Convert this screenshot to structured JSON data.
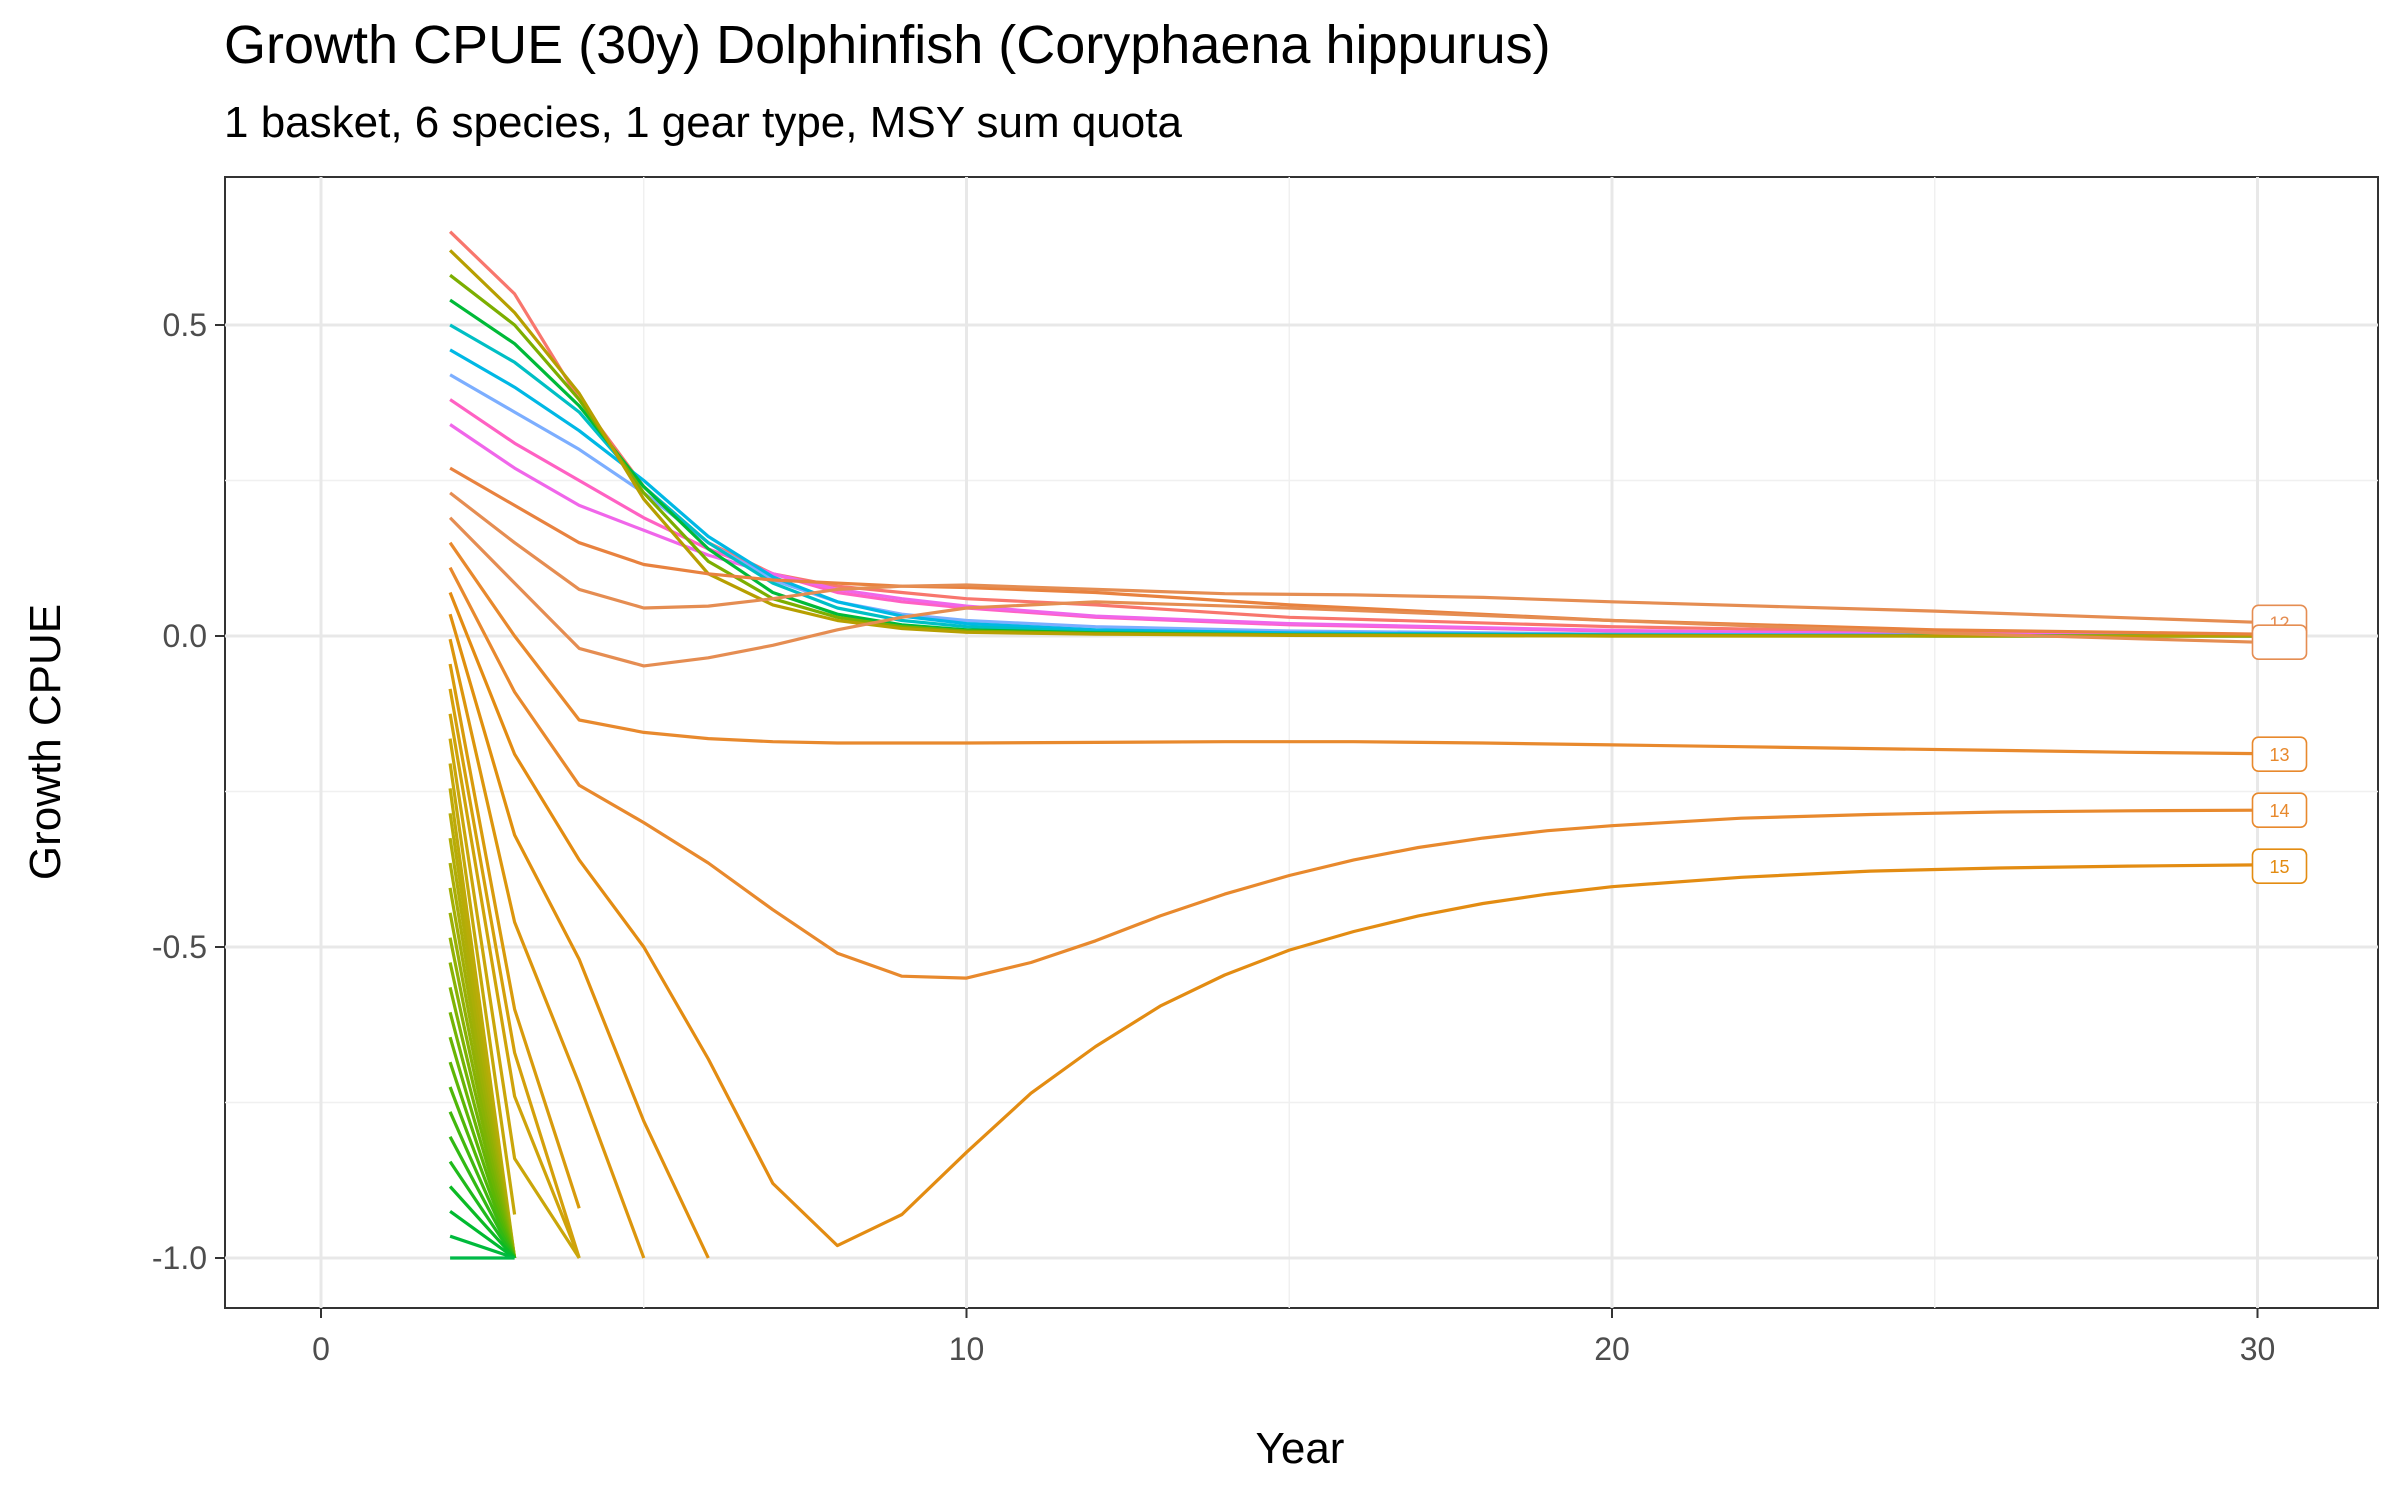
{
  "chart_data": {
    "type": "line",
    "title": "Growth CPUE (30y) Dolphinfish (Coryphaena hippurus)",
    "subtitle": "1 basket, 6 species, 1 gear type, MSY sum quota",
    "xlabel": "Year",
    "ylabel": "Growth CPUE",
    "xlim": [
      -1.5,
      31.5
    ],
    "ylim": [
      -1.08,
      0.73
    ],
    "x_ticks": [
      0,
      10,
      20,
      30
    ],
    "x_tick_labels": [
      "0",
      "10",
      "20",
      "30"
    ],
    "y_ticks": [
      0.5,
      0.0,
      -0.5,
      -1.0
    ],
    "y_tick_labels": [
      "0.5",
      "0.0",
      "-0.5",
      "-1.0"
    ],
    "grid": true,
    "legend": "none",
    "end_labels": [
      {
        "text": "12",
        "y": 0.022,
        "color": "#E58D52"
      },
      {
        "text": "",
        "y": -0.01,
        "color": "#E58D52"
      },
      {
        "text": "13",
        "y": -0.19,
        "color": "#E8892D"
      },
      {
        "text": "14",
        "y": -0.28,
        "color": "#E8892D"
      },
      {
        "text": "15",
        "y": -0.37,
        "color": "#E38C12"
      }
    ],
    "series": [
      {
        "color": "#F8766D",
        "x": [
          2,
          3,
          4,
          5,
          6,
          7,
          8,
          9,
          10,
          12,
          15,
          20,
          25,
          30
        ],
        "y": [
          0.65,
          0.55,
          0.38,
          0.24,
          0.15,
          0.1,
          0.08,
          0.07,
          0.06,
          0.05,
          0.03,
          0.015,
          0.006,
          0.002
        ]
      },
      {
        "color": "#FF61C3",
        "x": [
          2,
          3,
          4,
          5,
          6,
          7,
          8,
          9,
          10,
          12,
          15,
          20,
          25,
          30
        ],
        "y": [
          0.38,
          0.31,
          0.25,
          0.19,
          0.14,
          0.1,
          0.07,
          0.055,
          0.045,
          0.03,
          0.018,
          0.008,
          0.003,
          0.001
        ]
      },
      {
        "color": "#F066EA",
        "x": [
          2,
          3,
          4,
          5,
          6,
          7,
          8,
          9,
          10,
          12,
          15,
          20,
          25,
          30
        ],
        "y": [
          0.34,
          0.27,
          0.21,
          0.17,
          0.13,
          0.1,
          0.075,
          0.06,
          0.048,
          0.032,
          0.02,
          0.009,
          0.003,
          0.001
        ]
      },
      {
        "color": "#7CAEFF",
        "x": [
          2,
          3,
          4,
          5,
          6,
          7,
          8,
          9,
          10,
          12,
          15,
          20,
          25,
          30
        ],
        "y": [
          0.42,
          0.36,
          0.3,
          0.23,
          0.15,
          0.09,
          0.055,
          0.035,
          0.025,
          0.015,
          0.008,
          0.003,
          0.001,
          0.0
        ]
      },
      {
        "color": "#00B8E5",
        "x": [
          2,
          3,
          4,
          5,
          6,
          7,
          8,
          9,
          10,
          12,
          15,
          20,
          25,
          30
        ],
        "y": [
          0.46,
          0.4,
          0.33,
          0.25,
          0.16,
          0.095,
          0.055,
          0.032,
          0.02,
          0.01,
          0.005,
          0.002,
          0.001,
          0.0
        ]
      },
      {
        "color": "#00BFC4",
        "x": [
          2,
          3,
          4,
          5,
          6,
          7,
          8,
          9,
          10,
          12,
          15,
          20,
          25,
          30
        ],
        "y": [
          0.5,
          0.44,
          0.36,
          0.24,
          0.15,
          0.085,
          0.045,
          0.025,
          0.015,
          0.007,
          0.003,
          0.001,
          0.0,
          0.0
        ]
      },
      {
        "color": "#00BA38",
        "x": [
          2,
          3,
          4,
          5,
          6,
          7,
          8,
          9,
          10,
          12,
          15,
          20,
          25,
          30
        ],
        "y": [
          0.54,
          0.47,
          0.37,
          0.24,
          0.14,
          0.07,
          0.035,
          0.018,
          0.01,
          0.005,
          0.002,
          0.001,
          0.0,
          0.0
        ]
      },
      {
        "color": "#7CAE00",
        "x": [
          2,
          3,
          4,
          5,
          6,
          7,
          8,
          9,
          10,
          12,
          15,
          20,
          25,
          30
        ],
        "y": [
          0.58,
          0.5,
          0.38,
          0.23,
          0.12,
          0.06,
          0.03,
          0.015,
          0.008,
          0.004,
          0.002,
          0.0,
          0.0,
          0.0
        ]
      },
      {
        "color": "#B79F00",
        "x": [
          2,
          3,
          4,
          5,
          6,
          7,
          8,
          9,
          10,
          12,
          15,
          20,
          25,
          30
        ],
        "y": [
          0.62,
          0.52,
          0.39,
          0.22,
          0.1,
          0.05,
          0.025,
          0.012,
          0.006,
          0.003,
          0.001,
          0.0,
          0.0,
          0.0
        ]
      },
      {
        "color": "#E8823F",
        "x": [
          2,
          3,
          4,
          5,
          6,
          7,
          8,
          9,
          10,
          12,
          15,
          20,
          25,
          30
        ],
        "y": [
          0.27,
          0.21,
          0.15,
          0.115,
          0.1,
          0.09,
          0.085,
          0.08,
          0.078,
          0.07,
          0.05,
          0.025,
          0.01,
          0.003
        ]
      },
      {
        "color": "#E58D52",
        "x": [
          2,
          3,
          4,
          5,
          6,
          7,
          8,
          9,
          10,
          12,
          14,
          16,
          18,
          20,
          25,
          30
        ],
        "y": [
          0.23,
          0.15,
          0.075,
          0.045,
          0.048,
          0.06,
          0.075,
          0.08,
          0.082,
          0.075,
          0.068,
          0.066,
          0.062,
          0.055,
          0.04,
          0.022
        ]
      },
      {
        "color": "#E58D52",
        "x": [
          2,
          3,
          4,
          5,
          6,
          7,
          8,
          9,
          10,
          12,
          15,
          20,
          25,
          30
        ],
        "y": [
          0.19,
          0.085,
          -0.02,
          -0.048,
          -0.035,
          -0.015,
          0.01,
          0.03,
          0.045,
          0.055,
          0.045,
          0.025,
          0.005,
          -0.01
        ]
      },
      {
        "color": "#E8892D",
        "x": [
          2,
          3,
          4,
          5,
          6,
          7,
          8,
          10,
          12,
          14,
          16,
          18,
          20,
          22,
          24,
          26,
          28,
          30
        ],
        "y": [
          0.15,
          0.0,
          -0.135,
          -0.155,
          -0.165,
          -0.17,
          -0.172,
          -0.172,
          -0.171,
          -0.17,
          -0.17,
          -0.172,
          -0.175,
          -0.178,
          -0.181,
          -0.184,
          -0.187,
          -0.189
        ]
      },
      {
        "color": "#E8892D",
        "x": [
          2,
          3,
          4,
          5,
          6,
          7,
          8,
          9,
          10,
          11,
          12,
          13,
          14,
          15,
          16,
          17,
          18,
          19,
          20,
          22,
          24,
          26,
          28,
          30
        ],
        "y": [
          0.11,
          -0.09,
          -0.24,
          -0.3,
          -0.365,
          -0.44,
          -0.51,
          -0.547,
          -0.55,
          -0.525,
          -0.49,
          -0.45,
          -0.415,
          -0.385,
          -0.36,
          -0.34,
          -0.325,
          -0.313,
          -0.305,
          -0.293,
          -0.287,
          -0.283,
          -0.281,
          -0.28
        ]
      },
      {
        "color": "#E38C12",
        "x": [
          2,
          3,
          4,
          5,
          6,
          7,
          8,
          9,
          10,
          11,
          12,
          13,
          14,
          15,
          16,
          17,
          18,
          19,
          20,
          22,
          24,
          26,
          28,
          30
        ],
        "y": [
          0.07,
          -0.19,
          -0.36,
          -0.5,
          -0.68,
          -0.88,
          -0.98,
          -0.93,
          -0.83,
          -0.735,
          -0.66,
          -0.595,
          -0.545,
          -0.505,
          -0.475,
          -0.45,
          -0.43,
          -0.415,
          -0.403,
          -0.388,
          -0.378,
          -0.373,
          -0.37,
          -0.368
        ]
      },
      {
        "color": "#E0900E",
        "x": [
          2,
          3,
          4,
          5,
          6
        ],
        "y": [
          0.035,
          -0.32,
          -0.52,
          -0.78,
          -1.0
        ]
      },
      {
        "color": "#DC960D",
        "x": [
          2,
          3,
          4,
          5
        ],
        "y": [
          -0.005,
          -0.46,
          -0.72,
          -1.0
        ]
      },
      {
        "color": "#D89B0C",
        "x": [
          2,
          3,
          4
        ],
        "y": [
          -0.045,
          -0.6,
          -0.92
        ]
      },
      {
        "color": "#D4A00B",
        "x": [
          2,
          3,
          4
        ],
        "y": [
          -0.085,
          -0.67,
          -1.0
        ]
      },
      {
        "color": "#CFA30A",
        "x": [
          2,
          3,
          4
        ],
        "y": [
          -0.125,
          -0.74,
          -1.0
        ]
      },
      {
        "color": "#CAA60A",
        "x": [
          2,
          3,
          4
        ],
        "y": [
          -0.165,
          -0.84,
          -1.0
        ]
      },
      {
        "color": "#C4A809",
        "x": [
          2,
          3
        ],
        "y": [
          -0.205,
          -0.93
        ]
      },
      {
        "color": "#BEAA08",
        "x": [
          2,
          3
        ],
        "y": [
          -0.245,
          -1.0
        ]
      },
      {
        "color": "#B8AC08",
        "x": [
          2,
          3
        ],
        "y": [
          -0.285,
          -1.0
        ]
      },
      {
        "color": "#B1AD07",
        "x": [
          2,
          3
        ],
        "y": [
          -0.325,
          -1.0
        ]
      },
      {
        "color": "#AAAE07",
        "x": [
          2,
          3
        ],
        "y": [
          -0.365,
          -1.0
        ]
      },
      {
        "color": "#A2AF06",
        "x": [
          2,
          3
        ],
        "y": [
          -0.405,
          -1.0
        ]
      },
      {
        "color": "#9AB006",
        "x": [
          2,
          3
        ],
        "y": [
          -0.445,
          -1.0
        ]
      },
      {
        "color": "#91B105",
        "x": [
          2,
          3
        ],
        "y": [
          -0.485,
          -1.0
        ]
      },
      {
        "color": "#88B205",
        "x": [
          2,
          3
        ],
        "y": [
          -0.525,
          -1.0
        ]
      },
      {
        "color": "#7EB304",
        "x": [
          2,
          3
        ],
        "y": [
          -0.565,
          -1.0
        ]
      },
      {
        "color": "#73B404",
        "x": [
          2,
          3
        ],
        "y": [
          -0.605,
          -1.0
        ]
      },
      {
        "color": "#68B504",
        "x": [
          2,
          3
        ],
        "y": [
          -0.645,
          -1.0
        ]
      },
      {
        "color": "#5CB605",
        "x": [
          2,
          3
        ],
        "y": [
          -0.685,
          -1.0
        ]
      },
      {
        "color": "#4FB708",
        "x": [
          2,
          3
        ],
        "y": [
          -0.725,
          -1.0
        ]
      },
      {
        "color": "#41B80D",
        "x": [
          2,
          3
        ],
        "y": [
          -0.765,
          -1.0
        ]
      },
      {
        "color": "#31B913",
        "x": [
          2,
          3
        ],
        "y": [
          -0.805,
          -1.0
        ]
      },
      {
        "color": "#1FBA1B",
        "x": [
          2,
          3
        ],
        "y": [
          -0.845,
          -1.0
        ]
      },
      {
        "color": "#0BBA24",
        "x": [
          2,
          3
        ],
        "y": [
          -0.885,
          -1.0
        ]
      },
      {
        "color": "#00BA30",
        "x": [
          2,
          3
        ],
        "y": [
          -0.925,
          -1.0
        ]
      },
      {
        "color": "#00BA3C",
        "x": [
          2,
          3
        ],
        "y": [
          -0.965,
          -1.0
        ]
      },
      {
        "color": "#00BA48",
        "x": [
          2,
          3
        ],
        "y": [
          -1.0,
          -1.0
        ]
      }
    ]
  }
}
